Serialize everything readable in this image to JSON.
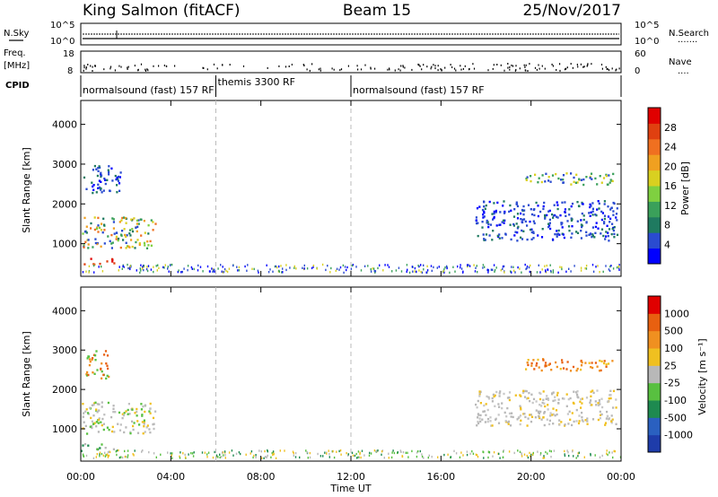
{
  "header": {
    "station": "King Salmon (fitACF)",
    "beam": "Beam 15",
    "date": "25/Nov/2017"
  },
  "aux_panels": {
    "nsky_label": "N.Sky",
    "nsearch_label": "N.Search",
    "nsearch_dots": ".......",
    "freq_label": "Freq.",
    "freq_unit": "[MHz]",
    "nave_label": "Nave",
    "nave_dots": "....",
    "cpid_label": "CPID",
    "left_ticks_noise": [
      "10^5",
      "10^0"
    ],
    "right_ticks_noise": [
      "10^5",
      "10^0"
    ],
    "left_ticks_freq": [
      "18",
      "8"
    ],
    "right_ticks_nave": [
      "60",
      "0"
    ],
    "cpid_segments": [
      {
        "label": "normalsound (fast) 157 RF",
        "start": 0,
        "end": 6
      },
      {
        "label": "themis 3300 RF",
        "start": 6,
        "end": 12
      },
      {
        "label": "normalsound (fast) 157 RF",
        "start": 12,
        "end": 24
      }
    ]
  },
  "colorbars": {
    "power": {
      "label": "Power [dB]",
      "ticks": [
        "4",
        "8",
        "12",
        "16",
        "20",
        "24",
        "28"
      ],
      "colors": [
        "#0000ff",
        "#2a4bd0",
        "#1f7a60",
        "#3aa05a",
        "#7fd040",
        "#d9d020",
        "#f0a020",
        "#f07020",
        "#e04010",
        "#e00000"
      ]
    },
    "velocity": {
      "label": "Velocity [m s⁻¹]",
      "ticks": [
        "1000",
        "500",
        "100",
        "25",
        "-25",
        "-100",
        "-500",
        "-1000"
      ],
      "colors": [
        "#1e3caa",
        "#2a60c0",
        "#1e8a50",
        "#58c040",
        "#b8b8b8",
        "#f0c020",
        "#f09020",
        "#e86010",
        "#e00000"
      ]
    }
  },
  "chart_data": [
    {
      "type": "heatmap",
      "name": "Power",
      "xlabel": "Time UT",
      "ylabel": "Slant Range [km]",
      "xlim": [
        0,
        24
      ],
      "ylim": [
        180,
        4600
      ],
      "x_ticks": [
        "00:00",
        "04:00",
        "08:00",
        "12:00",
        "16:00",
        "20:00",
        "00:00"
      ],
      "y_ticks": [
        1000,
        2000,
        3000,
        4000
      ],
      "mode_boundaries_hours": [
        6,
        12
      ],
      "regions": [
        {
          "x": [
            0.05,
            3.3
          ],
          "y": [
            900,
            1700
          ],
          "level": "mixed-green-orange"
        },
        {
          "x": [
            0.1,
            1.8
          ],
          "y": [
            2300,
            3000
          ],
          "level": "blue"
        },
        {
          "x": [
            0.05,
            1.5
          ],
          "y": [
            500,
            650
          ],
          "level": "orange-red"
        },
        {
          "x": [
            0,
            24
          ],
          "y": [
            300,
            500
          ],
          "level": "sparse-low"
        },
        {
          "x": [
            17.5,
            23.8
          ],
          "y": [
            1100,
            2100
          ],
          "level": "blue"
        },
        {
          "x": [
            19.6,
            23.7
          ],
          "y": [
            2500,
            2800
          ],
          "level": "green-yellow"
        }
      ]
    },
    {
      "type": "heatmap",
      "name": "Velocity",
      "xlabel": "Time UT",
      "ylabel": "Slant Range [km]",
      "xlim": [
        0,
        24
      ],
      "ylim": [
        180,
        4600
      ],
      "x_ticks": [
        "00:00",
        "04:00",
        "08:00",
        "12:00",
        "16:00",
        "20:00",
        "00:00"
      ],
      "y_ticks": [
        1000,
        2000,
        3000,
        4000
      ],
      "mode_boundaries_hours": [
        6,
        12
      ],
      "regions": [
        {
          "x": [
            0.05,
            3.3
          ],
          "y": [
            900,
            1700
          ],
          "level": "grey-yellow"
        },
        {
          "x": [
            0.1,
            1.2
          ],
          "y": [
            2300,
            3000
          ],
          "level": "orange-green"
        },
        {
          "x": [
            0.05,
            1.5
          ],
          "y": [
            500,
            650
          ],
          "level": "green"
        },
        {
          "x": [
            0,
            24
          ],
          "y": [
            280,
            480
          ],
          "level": "sparse-green-yellow"
        },
        {
          "x": [
            17.5,
            23.8
          ],
          "y": [
            1100,
            2000
          ],
          "level": "grey"
        },
        {
          "x": [
            19.6,
            23.7
          ],
          "y": [
            2500,
            2800
          ],
          "level": "orange"
        }
      ]
    }
  ]
}
